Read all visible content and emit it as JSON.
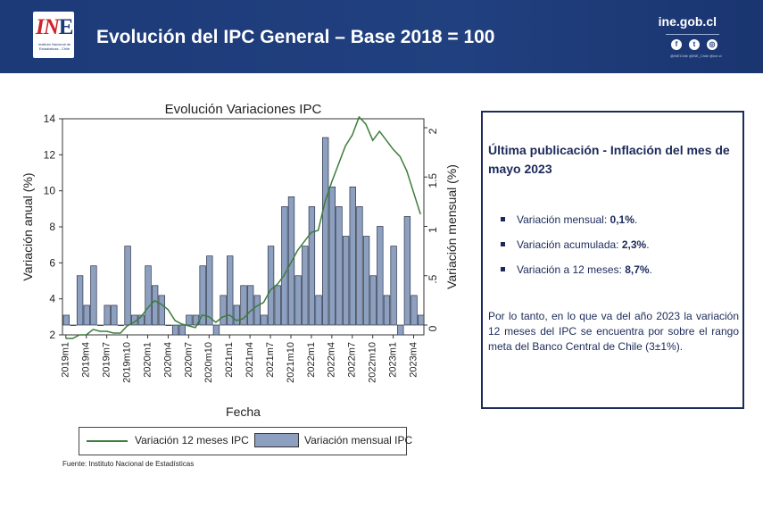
{
  "header": {
    "title": "Evolución del IPC General – Base 2018 = 100",
    "site": "ine.gob.cl",
    "logo_text": "Instituto Nacional de Estadísticas - Chile",
    "social_handles": "@INEChile   @INE_Chile   @ine.cl",
    "colors": {
      "bar": "#1d3a78",
      "accent": "#d0232a"
    }
  },
  "chart_data": {
    "type": "bar",
    "title": "Evolución Variaciones IPC",
    "xlabel": "Fecha",
    "ylabel_left": "Variación anual (%)",
    "ylabel_right": "Variación mensual (%)",
    "ylim_left": [
      2,
      14
    ],
    "ylim_right": [
      0,
      2
    ],
    "yticks_left": [
      "2",
      "4",
      "6",
      "8",
      "10",
      "12",
      "14"
    ],
    "yticks_right": [
      "0",
      ".5",
      "1",
      "1.5",
      "2"
    ],
    "x": [
      "2019m1",
      "2019m2",
      "2019m3",
      "2019m4",
      "2019m5",
      "2019m6",
      "2019m7",
      "2019m8",
      "2019m9",
      "2019m10",
      "2019m11",
      "2019m12",
      "2020m1",
      "2020m2",
      "2020m3",
      "2020m4",
      "2020m5",
      "2020m6",
      "2020m7",
      "2020m8",
      "2020m9",
      "2020m10",
      "2020m11",
      "2020m12",
      "2021m1",
      "2021m2",
      "2021m3",
      "2021m4",
      "2021m5",
      "2021m6",
      "2021m7",
      "2021m8",
      "2021m9",
      "2021m10",
      "2021m11",
      "2021m12",
      "2022m1",
      "2022m2",
      "2022m3",
      "2022m4",
      "2022m5",
      "2022m6",
      "2022m7",
      "2022m8",
      "2022m9",
      "2022m10",
      "2022m11",
      "2022m12",
      "2023m1",
      "2023m2",
      "2023m3",
      "2023m4",
      "2023m5"
    ],
    "xtick_labels": [
      "2019m1",
      "2019m4",
      "2019m7",
      "2019m10",
      "2020m1",
      "2020m4",
      "2020m7",
      "2020m10",
      "2021m1",
      "2021m4",
      "2021m7",
      "2021m10",
      "2022m1",
      "2022m4",
      "2022m7",
      "2022m10",
      "2023m1",
      "2023m4"
    ],
    "series": [
      {
        "name": "Variación mensual IPC",
        "axis": "right",
        "type": "bar",
        "color": "#8da0c0",
        "values": [
          0.1,
          0.0,
          0.5,
          0.2,
          0.6,
          0.0,
          0.2,
          0.2,
          0.0,
          0.8,
          0.1,
          0.1,
          0.6,
          0.4,
          0.3,
          0.0,
          -0.1,
          -0.1,
          0.1,
          0.1,
          0.6,
          0.7,
          -0.1,
          0.3,
          0.7,
          0.2,
          0.4,
          0.4,
          0.3,
          0.1,
          0.8,
          0.4,
          1.2,
          1.3,
          0.5,
          0.8,
          1.2,
          0.3,
          1.9,
          1.4,
          1.2,
          0.9,
          1.4,
          1.2,
          0.9,
          0.5,
          1.0,
          0.3,
          0.8,
          -0.1,
          1.1,
          0.3,
          0.1
        ]
      },
      {
        "name": "Variación 12 meses IPC",
        "axis": "left",
        "type": "line",
        "color": "#3b7d3b",
        "values": [
          1.8,
          1.8,
          2.0,
          2.0,
          2.3,
          2.2,
          2.2,
          2.1,
          2.1,
          2.5,
          2.7,
          3.0,
          3.5,
          3.9,
          3.7,
          3.4,
          2.8,
          2.6,
          2.5,
          2.4,
          3.1,
          3.0,
          2.7,
          3.0,
          3.1,
          2.8,
          2.9,
          3.3,
          3.6,
          3.8,
          4.5,
          4.8,
          5.3,
          6.0,
          6.7,
          7.2,
          7.7,
          7.8,
          9.4,
          10.5,
          11.5,
          12.5,
          13.1,
          14.1,
          13.7,
          12.8,
          13.3,
          12.8,
          12.3,
          11.9,
          11.1,
          9.9,
          8.7
        ]
      }
    ],
    "legend_position": "bottom",
    "source": "Fuente: Instituto Nacional de Estadísticas"
  },
  "info": {
    "title": "Última publicación - Inflación del mes de mayo 2023",
    "items": [
      {
        "label": "Variación mensual:",
        "value": "0,1%",
        "suffix": "."
      },
      {
        "label": "Variación acumulada:",
        "value": "2,3%",
        "suffix": "."
      },
      {
        "label": "Variación a 12 meses:",
        "value": "8,7%",
        "suffix": "."
      }
    ],
    "paragraph": "Por lo tanto, en lo que va del año 2023 la variación 12 meses del IPC se encuentra por sobre el rango meta del Banco Central de Chile (3±1%)."
  }
}
